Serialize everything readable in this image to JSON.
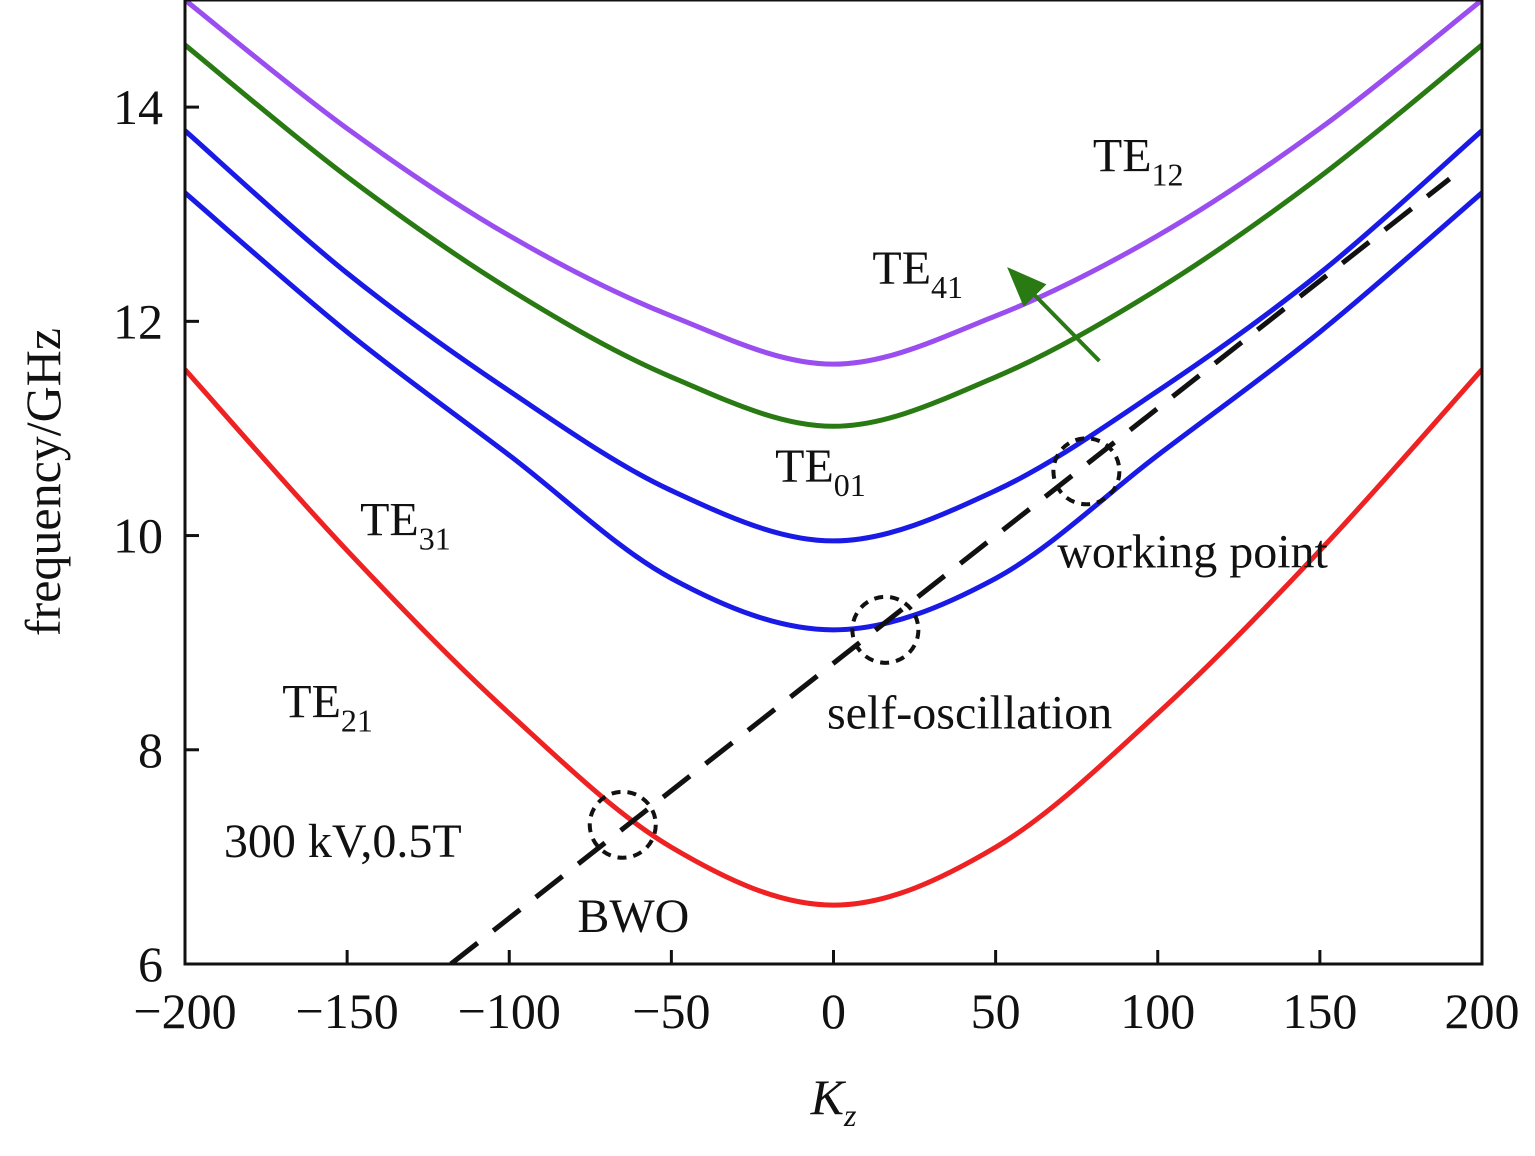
{
  "chart_data": {
    "type": "line",
    "xlabel_main": "K",
    "xlabel_sub": "z",
    "ylabel": "frequency/GHz",
    "xlim": [
      -200,
      200
    ],
    "ylim": [
      6,
      15
    ],
    "xticks": [
      -200,
      -150,
      -100,
      -50,
      0,
      50,
      100,
      150,
      200
    ],
    "xtick_labels": [
      "−200",
      "−150",
      "−100",
      "−50",
      "0",
      "50",
      "100",
      "150",
      "200"
    ],
    "yticks": [
      6,
      8,
      10,
      12,
      14
    ],
    "ytick_labels": [
      "6",
      "8",
      "10",
      "12",
      "14"
    ],
    "grid": false,
    "series": [
      {
        "name": "TE21",
        "cutoff": 6.55,
        "color": "#ee2222",
        "x": [
          -200,
          -150,
          -100,
          -50,
          0,
          50,
          100,
          150,
          200
        ],
        "y": [
          11.55,
          9.86,
          8.34,
          7.09,
          6.55,
          7.09,
          8.34,
          9.86,
          11.55
        ]
      },
      {
        "name": "TE31",
        "cutoff": 9.12,
        "color": "#1a1ae6",
        "x": [
          -200,
          -150,
          -100,
          -50,
          0,
          50,
          100,
          150,
          200
        ],
        "y": [
          13.2,
          11.9,
          10.75,
          9.6,
          9.12,
          9.6,
          10.75,
          11.9,
          13.2
        ]
      },
      {
        "name": "TE01",
        "cutoff": 9.95,
        "color": "#1a1ae6",
        "x": [
          -200,
          -150,
          -100,
          -50,
          0,
          50,
          100,
          150,
          200
        ],
        "y": [
          13.78,
          12.45,
          11.35,
          10.42,
          9.95,
          10.42,
          11.35,
          12.45,
          13.78
        ]
      },
      {
        "name": "TE41",
        "cutoff": 11.02,
        "color": "#2a7a14",
        "x": [
          -200,
          -150,
          -100,
          -50,
          0,
          50,
          100,
          150,
          200
        ],
        "y": [
          14.58,
          13.35,
          12.3,
          11.48,
          11.02,
          11.48,
          12.3,
          13.35,
          14.58
        ]
      },
      {
        "name": "TE12",
        "cutoff": 11.6,
        "color": "#9a4ef0",
        "x": [
          -200,
          -150,
          -100,
          -50,
          0,
          50,
          100,
          150,
          200
        ],
        "y": [
          15.0,
          13.8,
          12.8,
          12.05,
          11.6,
          12.05,
          12.8,
          13.8,
          15.0
        ]
      }
    ],
    "beam_line": {
      "x": [
        -118,
        190
      ],
      "y": [
        6.0,
        13.33
      ],
      "style": "dashed",
      "color": "#111111"
    },
    "mode_labels": [
      {
        "main": "TE",
        "sub": "12",
        "x": 80,
        "y": 13.4
      },
      {
        "main": "TE",
        "sub": "41",
        "x": 12,
        "y": 12.35
      },
      {
        "main": "TE",
        "sub": "01",
        "x": -18,
        "y": 10.5
      },
      {
        "main": "TE",
        "sub": "31",
        "x": -146,
        "y": 10.0
      },
      {
        "main": "TE",
        "sub": "21",
        "x": -170,
        "y": 8.3
      }
    ],
    "circles": [
      {
        "x": 78,
        "y": 10.6
      },
      {
        "x": 16,
        "y": 9.12
      },
      {
        "x": -65,
        "y": 7.3
      }
    ],
    "annotations": [
      {
        "text": "working point",
        "x": 69,
        "y": 9.7
      },
      {
        "text": "self-oscillation",
        "x": -2,
        "y": 8.2
      },
      {
        "text": "300 kV,0.5T",
        "x": -188,
        "y": 7.0
      },
      {
        "text": "BWO",
        "x": -79,
        "y": 6.3
      }
    ],
    "arrow": {
      "from": [
        82,
        11.63
      ],
      "to": [
        57,
        12.4
      ],
      "color": "#2a7a14"
    }
  }
}
